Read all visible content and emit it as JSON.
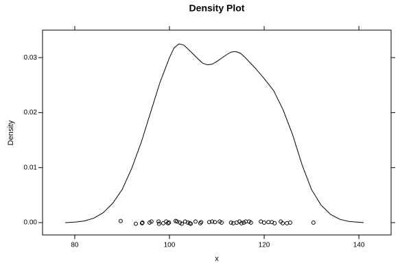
{
  "chart_data": {
    "type": "density",
    "title": "Density Plot",
    "x_label": "x",
    "y_label": "Density",
    "color": "#000000",
    "curve": {
      "x": [
        78,
        80,
        82,
        84,
        86,
        88,
        90,
        92,
        94,
        96,
        98,
        100,
        101,
        102,
        103,
        104,
        106,
        107,
        108,
        109,
        110,
        112,
        113,
        114,
        115,
        116,
        118,
        120,
        122,
        124,
        126,
        128,
        130,
        132,
        134,
        136,
        138,
        141
      ],
      "y": [
        0,
        0.0001,
        0.0003,
        0.0008,
        0.0018,
        0.0035,
        0.006,
        0.0098,
        0.0145,
        0.02,
        0.0255,
        0.03,
        0.0318,
        0.0325,
        0.0323,
        0.0315,
        0.0298,
        0.029,
        0.0287,
        0.0288,
        0.0293,
        0.0305,
        0.031,
        0.0311,
        0.0308,
        0.03,
        0.0282,
        0.0262,
        0.024,
        0.0205,
        0.016,
        0.0105,
        0.006,
        0.0032,
        0.0015,
        0.0006,
        0.0002,
        0
      ]
    },
    "rug": {
      "x": [
        89.7,
        92.9,
        94.2,
        94.3,
        95.8,
        96.2,
        97.7,
        97.8,
        98.7,
        99.3,
        99.7,
        99.9,
        101.3,
        101.6,
        102.2,
        102.6,
        103.3,
        103.9,
        104.3,
        104.5,
        105.5,
        106.5,
        106.7,
        108.4,
        109,
        109.6,
        110.6,
        111,
        113,
        113.5,
        114.2,
        114.8,
        115.2,
        115.7,
        116.1,
        116.8,
        117.2,
        119.3,
        120,
        120.9,
        121.6,
        122.2,
        123.5,
        123.9,
        124.8,
        125.5,
        130.4
      ],
      "y": [
        0.0003,
        -0.0002,
        -0.0001,
        0,
        0,
        0.0002,
        0.0002,
        -0.0002,
        -0.0001,
        0.0002,
        -0.0001,
        0,
        0.0003,
        0.0002,
        0,
        -0.0002,
        0.0002,
        0,
        -0.0001,
        -0.0002,
        0.0002,
        -0.0001,
        0.0001,
        0.0001,
        0.0002,
        0.0001,
        0.0002,
        0,
        0,
        -0.0001,
        0,
        0.0002,
        -0.0001,
        0,
        0.0002,
        0.0002,
        0,
        0.0002,
        0,
        0.0001,
        0.0001,
        -0.0001,
        0.0002,
        -0.0001,
        -0.0001,
        0,
        0
      ]
    },
    "xlim": [
      73.2,
      146.8
    ],
    "xticks": [
      80,
      100,
      120,
      140
    ],
    "ylim": [
      -0.00224,
      0.035
    ],
    "yticks": [
      {
        "value": 0,
        "label": "0.00"
      },
      {
        "value": 0.01,
        "label": "0.01"
      },
      {
        "value": 0.02,
        "label": "0.02"
      },
      {
        "value": 0.03,
        "label": "0.03"
      }
    ]
  }
}
